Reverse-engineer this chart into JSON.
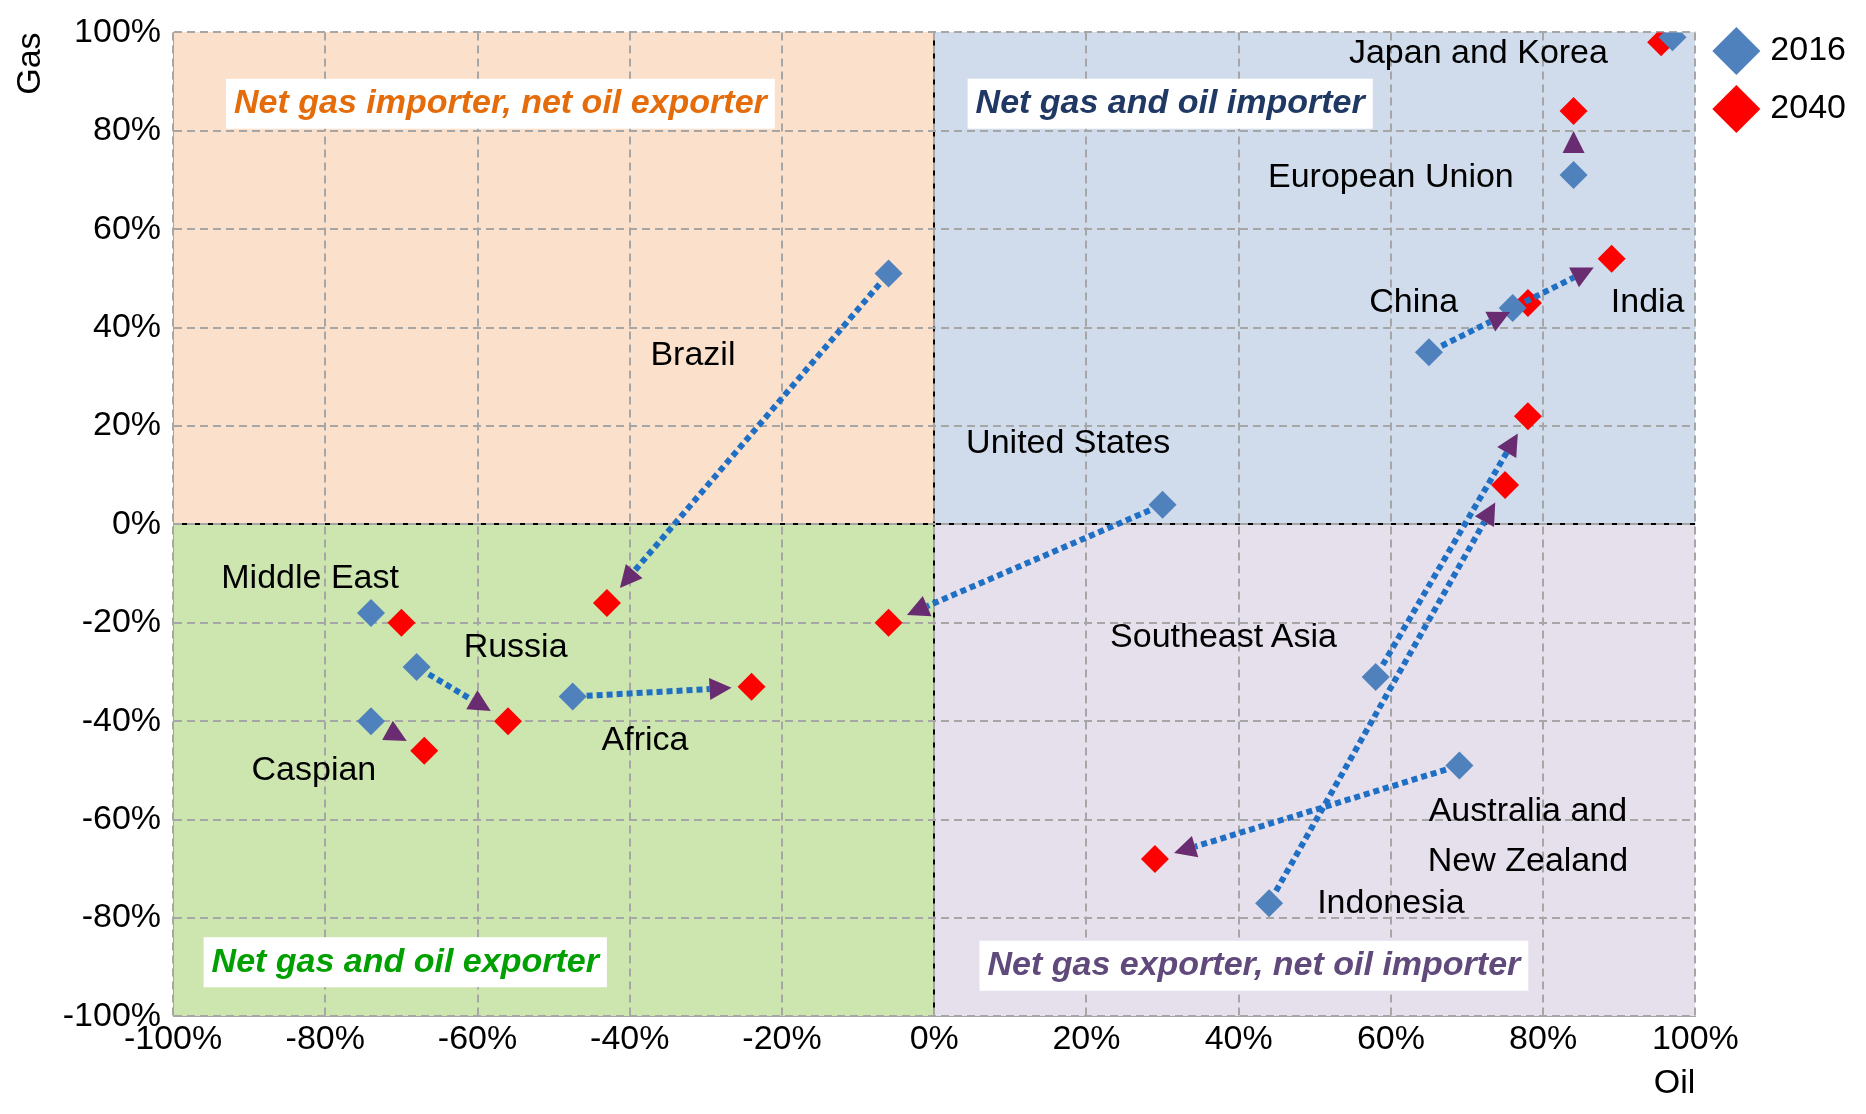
{
  "chart_data": {
    "type": "scatter",
    "xlabel": "Oil",
    "ylabel": "Gas",
    "marker": "diamond",
    "grid": true,
    "legend": "top right",
    "xlim": [
      -100,
      100
    ],
    "ylim": [
      -100,
      100
    ],
    "xticks": [
      {
        "value": -100,
        "label": "-100%"
      },
      {
        "value": -80,
        "label": "-80%"
      },
      {
        "value": -60,
        "label": "-60%"
      },
      {
        "value": -40,
        "label": "-40%"
      },
      {
        "value": -20,
        "label": "-20%"
      },
      {
        "value": 0,
        "label": "0%"
      },
      {
        "value": 20,
        "label": "20%"
      },
      {
        "value": 40,
        "label": "40%"
      },
      {
        "value": 60,
        "label": "60%"
      },
      {
        "value": 80,
        "label": "80%"
      },
      {
        "value": 100,
        "label": "100%"
      }
    ],
    "yticks": [
      {
        "value": -100,
        "label": "-100%"
      },
      {
        "value": -80,
        "label": "-80%"
      },
      {
        "value": -60,
        "label": "-60%"
      },
      {
        "value": -40,
        "label": "-40%"
      },
      {
        "value": -20,
        "label": "-20%"
      },
      {
        "value": 0,
        "label": "0%"
      },
      {
        "value": 20,
        "label": "20%"
      },
      {
        "value": 40,
        "label": "40%"
      },
      {
        "value": 60,
        "label": "60%"
      },
      {
        "value": 80,
        "label": "80%"
      },
      {
        "value": 100,
        "label": "100%"
      }
    ],
    "series": [
      {
        "name": "2016",
        "color": "#4f81bd",
        "x": [
          97,
          84,
          65,
          76,
          30,
          -6,
          58,
          44,
          69,
          -74,
          -68,
          -74,
          -47.5
        ],
        "values": [
          99,
          71,
          35,
          44,
          4,
          51,
          -31,
          -77,
          -49,
          -18,
          -29,
          -40,
          -35
        ]
      },
      {
        "name": "2040",
        "color": "#ff0000",
        "x": [
          95.5,
          84,
          78,
          89,
          -6,
          -43,
          78,
          75,
          29,
          -70,
          -56,
          -67,
          -24
        ],
        "values": [
          98,
          84,
          45,
          54,
          -20,
          -16,
          22,
          8,
          -68,
          -20,
          -40,
          -46,
          -33
        ]
      }
    ],
    "annotations": [
      "Japan and Korea",
      "European Union",
      "China",
      {
        "text": "India",
        "x": 89,
        "y": 54
      },
      "United States",
      "Brazil",
      "Southeast Asia",
      "Australia and\nNew Zealand",
      "Indonesia",
      "Middle East",
      "Russia",
      "Africa",
      "Caspian",
      "Net gas importer, net oil exporter",
      "Net gas and oil importer",
      "Net gas and oil exporter",
      "Net gas exporter, net oil importer"
    ]
  }
}
